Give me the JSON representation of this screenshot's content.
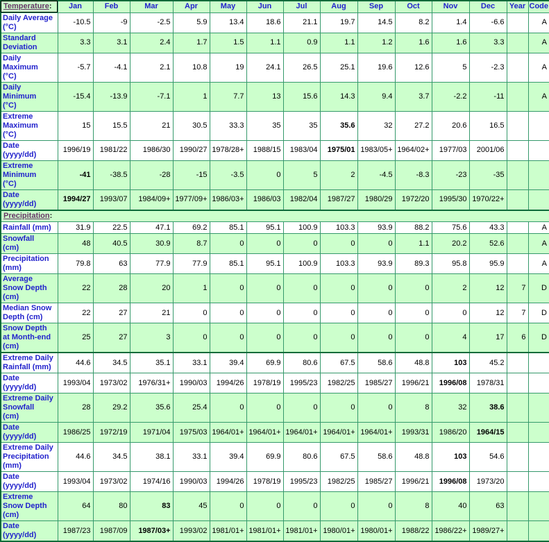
{
  "colors": {
    "row_green": "#ccffcc",
    "row_white": "#ffffff",
    "grid_border_green": "#35996b",
    "heavy_border_green": "#0e6b3a",
    "label_blue": "#2222cc",
    "section_link_purple": "#663366",
    "value_text": "#000000"
  },
  "table": {
    "header": {
      "temperature_label": "Temperature",
      "colon": ":",
      "months": [
        "Jan",
        "Feb",
        "Mar",
        "Apr",
        "May",
        "Jun",
        "Jul",
        "Aug",
        "Sep",
        "Oct",
        "Nov",
        "Dec"
      ],
      "year": "Year",
      "code": "Code"
    },
    "rows": [
      {
        "label": "Daily Average\n(°C)",
        "values": [
          "-10.5",
          "-9",
          "-2.5",
          "5.9",
          "13.4",
          "18.6",
          "21.1",
          "19.7",
          "14.5",
          "8.2",
          "1.4",
          "-6.6"
        ],
        "year": "",
        "code": "A",
        "bg": "white",
        "bold": -1
      },
      {
        "label": "Standard\nDeviation",
        "values": [
          "3.3",
          "3.1",
          "2.4",
          "1.7",
          "1.5",
          "1.1",
          "0.9",
          "1.1",
          "1.2",
          "1.6",
          "1.6",
          "3.3"
        ],
        "year": "",
        "code": "A",
        "bg": "green",
        "bold": -1
      },
      {
        "label": "Daily\nMaximum\n(°C)",
        "values": [
          "-5.7",
          "-4.1",
          "2.1",
          "10.8",
          "19",
          "24.1",
          "26.5",
          "25.1",
          "19.6",
          "12.6",
          "5",
          "-2.3"
        ],
        "year": "",
        "code": "A",
        "bg": "white",
        "bold": -1
      },
      {
        "label": "Daily\nMinimum\n(°C)",
        "values": [
          "-15.4",
          "-13.9",
          "-7.1",
          "1",
          "7.7",
          "13",
          "15.6",
          "14.3",
          "9.4",
          "3.7",
          "-2.2",
          "-11"
        ],
        "year": "",
        "code": "A",
        "bg": "green",
        "bold": -1
      },
      {
        "label": "Extreme\nMaximum\n(°C)",
        "values": [
          "15",
          "15.5",
          "21",
          "30.5",
          "33.3",
          "35",
          "35",
          "35.6",
          "32",
          "27.2",
          "20.6",
          "16.5"
        ],
        "year": "",
        "code": "",
        "bg": "white",
        "bold": 7
      },
      {
        "label": "Date\n(yyyy/dd)",
        "values": [
          "1996/19",
          "1981/22",
          "1986/30",
          "1990/27",
          "1978/28+",
          "1988/15",
          "1983/04",
          "1975/01",
          "1983/05+",
          "1964/02+",
          "1977/03",
          "2001/06"
        ],
        "year": "",
        "code": "",
        "bg": "white",
        "bold": 7
      },
      {
        "label": "Extreme\nMinimum\n(°C)",
        "values": [
          "-41",
          "-38.5",
          "-28",
          "-15",
          "-3.5",
          "0",
          "5",
          "2",
          "-4.5",
          "-8.3",
          "-23",
          "-35"
        ],
        "year": "",
        "code": "",
        "bg": "green",
        "bold": 0
      },
      {
        "label": "Date\n(yyyy/dd)",
        "values": [
          "1994/27",
          "1993/07",
          "1984/09+",
          "1977/09+",
          "1986/03+",
          "1986/03",
          "1982/04",
          "1987/27",
          "1980/29",
          "1972/20",
          "1995/30",
          "1970/22+"
        ],
        "year": "",
        "code": "",
        "bg": "green",
        "bold": 0
      },
      {
        "type": "section",
        "link_label": "Precipitation",
        "colon": ":",
        "heavy_top": true
      },
      {
        "label": "Rainfall (mm)",
        "values": [
          "31.9",
          "22.5",
          "47.1",
          "69.2",
          "85.1",
          "95.1",
          "100.9",
          "103.3",
          "93.9",
          "88.2",
          "75.6",
          "43.3"
        ],
        "year": "",
        "code": "A",
        "bg": "white",
        "bold": -1
      },
      {
        "label": "Snowfall\n(cm)",
        "values": [
          "48",
          "40.5",
          "30.9",
          "8.7",
          "0",
          "0",
          "0",
          "0",
          "0",
          "1.1",
          "20.2",
          "52.6"
        ],
        "year": "",
        "code": "A",
        "bg": "green",
        "bold": -1
      },
      {
        "label": "Precipitation\n(mm)",
        "values": [
          "79.8",
          "63",
          "77.9",
          "77.9",
          "85.1",
          "95.1",
          "100.9",
          "103.3",
          "93.9",
          "89.3",
          "95.8",
          "95.9"
        ],
        "year": "",
        "code": "A",
        "bg": "white",
        "bold": -1
      },
      {
        "label": "Average\nSnow Depth\n(cm)",
        "values": [
          "22",
          "28",
          "20",
          "1",
          "0",
          "0",
          "0",
          "0",
          "0",
          "0",
          "2",
          "12"
        ],
        "year": "7",
        "code": "D",
        "bg": "green",
        "bold": -1
      },
      {
        "label": "Median Snow\nDepth (cm)",
        "values": [
          "22",
          "27",
          "21",
          "0",
          "0",
          "0",
          "0",
          "0",
          "0",
          "0",
          "0",
          "12"
        ],
        "year": "7",
        "code": "D",
        "bg": "white",
        "bold": -1
      },
      {
        "label": "Snow Depth\nat Month-end\n(cm)",
        "values": [
          "25",
          "27",
          "3",
          "0",
          "0",
          "0",
          "0",
          "0",
          "0",
          "0",
          "4",
          "17"
        ],
        "year": "6",
        "code": "D",
        "bg": "green",
        "bold": -1
      },
      {
        "label": "Extreme Daily\nRainfall (mm)",
        "values": [
          "44.6",
          "34.5",
          "35.1",
          "33.1",
          "39.4",
          "69.9",
          "80.6",
          "67.5",
          "58.6",
          "48.8",
          "103",
          "45.2"
        ],
        "year": "",
        "code": "",
        "bg": "white",
        "bold": 10,
        "heavy_top": true
      },
      {
        "label": "Date\n(yyyy/dd)",
        "values": [
          "1993/04",
          "1973/02",
          "1976/31+",
          "1990/03",
          "1994/26",
          "1978/19",
          "1995/23",
          "1982/25",
          "1985/27",
          "1996/21",
          "1996/08",
          "1978/31"
        ],
        "year": "",
        "code": "",
        "bg": "white",
        "bold": 10
      },
      {
        "label": "Extreme Daily\nSnowfall\n(cm)",
        "values": [
          "28",
          "29.2",
          "35.6",
          "25.4",
          "0",
          "0",
          "0",
          "0",
          "0",
          "8",
          "32",
          "38.6"
        ],
        "year": "",
        "code": "",
        "bg": "green",
        "bold": 11
      },
      {
        "label": "Date\n(yyyy/dd)",
        "values": [
          "1986/25",
          "1972/19",
          "1971/04",
          "1975/03",
          "1964/01+",
          "1964/01+",
          "1964/01+",
          "1964/01+",
          "1964/01+",
          "1993/31",
          "1986/20",
          "1964/15"
        ],
        "year": "",
        "code": "",
        "bg": "green",
        "bold": 11
      },
      {
        "label": "Extreme Daily\nPrecipitation\n(mm)",
        "values": [
          "44.6",
          "34.5",
          "38.1",
          "33.1",
          "39.4",
          "69.9",
          "80.6",
          "67.5",
          "58.6",
          "48.8",
          "103",
          "54.6"
        ],
        "year": "",
        "code": "",
        "bg": "white",
        "bold": 10
      },
      {
        "label": "Date\n(yyyy/dd)",
        "values": [
          "1993/04",
          "1973/02",
          "1974/16",
          "1990/03",
          "1994/26",
          "1978/19",
          "1995/23",
          "1982/25",
          "1985/27",
          "1996/21",
          "1996/08",
          "1973/20"
        ],
        "year": "",
        "code": "",
        "bg": "white",
        "bold": 10
      },
      {
        "label": "Extreme\nSnow Depth\n(cm)",
        "values": [
          "64",
          "80",
          "83",
          "45",
          "0",
          "0",
          "0",
          "0",
          "0",
          "8",
          "40",
          "63"
        ],
        "year": "",
        "code": "",
        "bg": "green",
        "bold": 2
      },
      {
        "label": "Date\n(yyyy/dd)",
        "values": [
          "1987/23",
          "1987/09",
          "1987/03+",
          "1993/02",
          "1981/01+",
          "1981/01+",
          "1981/01+",
          "1980/01+",
          "1980/01+",
          "1988/22",
          "1986/22+",
          "1989/27+"
        ],
        "year": "",
        "code": "",
        "bg": "green",
        "bold": 2
      }
    ]
  }
}
